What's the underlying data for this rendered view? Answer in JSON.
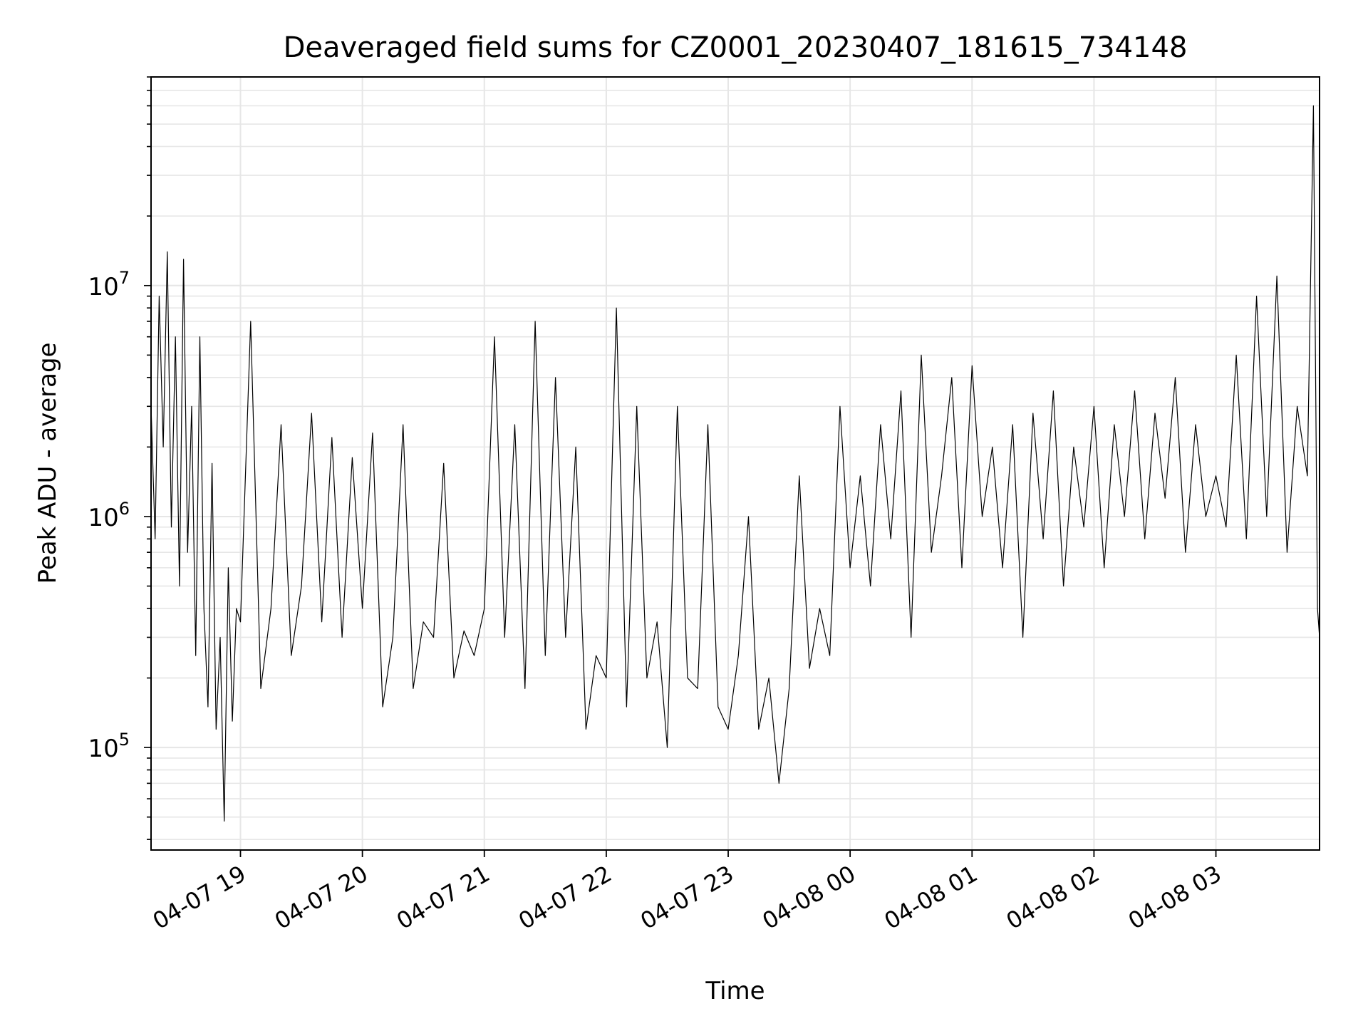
{
  "chart_data": {
    "type": "line",
    "title": "Deaveraged field sums for CZ0001_20230407_181615_734148",
    "xlabel": "Time",
    "ylabel": "Peak ADU - average",
    "yscale": "log",
    "ylim": [
      36000,
      80000000
    ],
    "xlim": [
      "2023-04-07 18:16",
      "2023-04-08 03:51"
    ],
    "grid": true,
    "grid_color": "#e6e6e6",
    "line_color": "#000000",
    "x_ticks": [
      {
        "t": "2023-04-07 19:00",
        "label": "04-07 19"
      },
      {
        "t": "2023-04-07 20:00",
        "label": "04-07 20"
      },
      {
        "t": "2023-04-07 21:00",
        "label": "04-07 21"
      },
      {
        "t": "2023-04-07 22:00",
        "label": "04-07 22"
      },
      {
        "t": "2023-04-07 23:00",
        "label": "04-07 23"
      },
      {
        "t": "2023-04-08 00:00",
        "label": "04-08 00"
      },
      {
        "t": "2023-04-08 01:00",
        "label": "04-08 01"
      },
      {
        "t": "2023-04-08 02:00",
        "label": "04-08 02"
      },
      {
        "t": "2023-04-08 03:00",
        "label": "04-08 03"
      }
    ],
    "y_ticks": [
      {
        "value": 100000,
        "base": "10",
        "exp": "5"
      },
      {
        "value": 1000000,
        "base": "10",
        "exp": "6"
      },
      {
        "value": 10000000,
        "base": "10",
        "exp": "7"
      }
    ],
    "series": [
      {
        "x": [
          "2023-04-07 18:16",
          "2023-04-07 18:18",
          "2023-04-07 18:20",
          "2023-04-07 18:22",
          "2023-04-07 18:24",
          "2023-04-07 18:26",
          "2023-04-07 18:28",
          "2023-04-07 18:30",
          "2023-04-07 18:32",
          "2023-04-07 18:34",
          "2023-04-07 18:36",
          "2023-04-07 18:38",
          "2023-04-07 18:40",
          "2023-04-07 18:42",
          "2023-04-07 18:44",
          "2023-04-07 18:46",
          "2023-04-07 18:48",
          "2023-04-07 18:50",
          "2023-04-07 18:52",
          "2023-04-07 18:54",
          "2023-04-07 18:56",
          "2023-04-07 18:58",
          "2023-04-07 19:00",
          "2023-04-07 19:05",
          "2023-04-07 19:10",
          "2023-04-07 19:15",
          "2023-04-07 19:20",
          "2023-04-07 19:25",
          "2023-04-07 19:30",
          "2023-04-07 19:35",
          "2023-04-07 19:40",
          "2023-04-07 19:45",
          "2023-04-07 19:50",
          "2023-04-07 19:55",
          "2023-04-07 20:00",
          "2023-04-07 20:05",
          "2023-04-07 20:10",
          "2023-04-07 20:15",
          "2023-04-07 20:20",
          "2023-04-07 20:25",
          "2023-04-07 20:30",
          "2023-04-07 20:35",
          "2023-04-07 20:40",
          "2023-04-07 20:45",
          "2023-04-07 20:50",
          "2023-04-07 20:55",
          "2023-04-07 21:00",
          "2023-04-07 21:05",
          "2023-04-07 21:10",
          "2023-04-07 21:15",
          "2023-04-07 21:20",
          "2023-04-07 21:25",
          "2023-04-07 21:30",
          "2023-04-07 21:35",
          "2023-04-07 21:40",
          "2023-04-07 21:45",
          "2023-04-07 21:50",
          "2023-04-07 21:55",
          "2023-04-07 22:00",
          "2023-04-07 22:05",
          "2023-04-07 22:10",
          "2023-04-07 22:15",
          "2023-04-07 22:20",
          "2023-04-07 22:25",
          "2023-04-07 22:30",
          "2023-04-07 22:35",
          "2023-04-07 22:40",
          "2023-04-07 22:45",
          "2023-04-07 22:50",
          "2023-04-07 22:55",
          "2023-04-07 23:00",
          "2023-04-07 23:05",
          "2023-04-07 23:10",
          "2023-04-07 23:15",
          "2023-04-07 23:20",
          "2023-04-07 23:25",
          "2023-04-07 23:30",
          "2023-04-07 23:35",
          "2023-04-07 23:40",
          "2023-04-07 23:45",
          "2023-04-07 23:50",
          "2023-04-07 23:55",
          "2023-04-08 00:00",
          "2023-04-08 00:05",
          "2023-04-08 00:10",
          "2023-04-08 00:15",
          "2023-04-08 00:20",
          "2023-04-08 00:25",
          "2023-04-08 00:30",
          "2023-04-08 00:35",
          "2023-04-08 00:40",
          "2023-04-08 00:45",
          "2023-04-08 00:50",
          "2023-04-08 00:55",
          "2023-04-08 01:00",
          "2023-04-08 01:05",
          "2023-04-08 01:10",
          "2023-04-08 01:15",
          "2023-04-08 01:20",
          "2023-04-08 01:25",
          "2023-04-08 01:30",
          "2023-04-08 01:35",
          "2023-04-08 01:40",
          "2023-04-08 01:45",
          "2023-04-08 01:50",
          "2023-04-08 01:55",
          "2023-04-08 02:00",
          "2023-04-08 02:05",
          "2023-04-08 02:10",
          "2023-04-08 02:15",
          "2023-04-08 02:20",
          "2023-04-08 02:25",
          "2023-04-08 02:30",
          "2023-04-08 02:35",
          "2023-04-08 02:40",
          "2023-04-08 02:45",
          "2023-04-08 02:50",
          "2023-04-08 02:55",
          "2023-04-08 03:00",
          "2023-04-08 03:05",
          "2023-04-08 03:10",
          "2023-04-08 03:15",
          "2023-04-08 03:20",
          "2023-04-08 03:25",
          "2023-04-08 03:30",
          "2023-04-08 03:35",
          "2023-04-08 03:40",
          "2023-04-08 03:45",
          "2023-04-08 03:48",
          "2023-04-08 03:50",
          "2023-04-08 03:51"
        ],
        "values": [
          3000000,
          800000,
          9000000,
          2000000,
          14000000,
          900000,
          6000000,
          500000,
          13000000,
          700000,
          3000000,
          250000,
          6000000,
          400000,
          150000,
          1700000,
          120000,
          300000,
          48000,
          600000,
          130000,
          400000,
          350000,
          7000000,
          180000,
          400000,
          2500000,
          250000,
          500000,
          2800000,
          350000,
          2200000,
          300000,
          1800000,
          400000,
          2300000,
          150000,
          300000,
          2500000,
          180000,
          350000,
          300000,
          1700000,
          200000,
          320000,
          250000,
          400000,
          6000000,
          300000,
          2500000,
          180000,
          7000000,
          250000,
          4000000,
          300000,
          2000000,
          120000,
          250000,
          200000,
          8000000,
          150000,
          3000000,
          200000,
          350000,
          100000,
          3000000,
          200000,
          180000,
          2500000,
          150000,
          120000,
          250000,
          1000000,
          120000,
          200000,
          70000,
          180000,
          1500000,
          220000,
          400000,
          250000,
          3000000,
          600000,
          1500000,
          500000,
          2500000,
          800000,
          3500000,
          300000,
          5000000,
          700000,
          1500000,
          4000000,
          600000,
          4500000,
          1000000,
          2000000,
          600000,
          2500000,
          300000,
          2800000,
          800000,
          3500000,
          500000,
          2000000,
          900000,
          3000000,
          600000,
          2500000,
          1000000,
          3500000,
          800000,
          2800000,
          1200000,
          4000000,
          700000,
          2500000,
          1000000,
          1500000,
          900000,
          5000000,
          800000,
          9000000,
          1000000,
          11000000,
          700000,
          3000000,
          1500000,
          60000000,
          400000,
          300000
        ]
      }
    ]
  }
}
